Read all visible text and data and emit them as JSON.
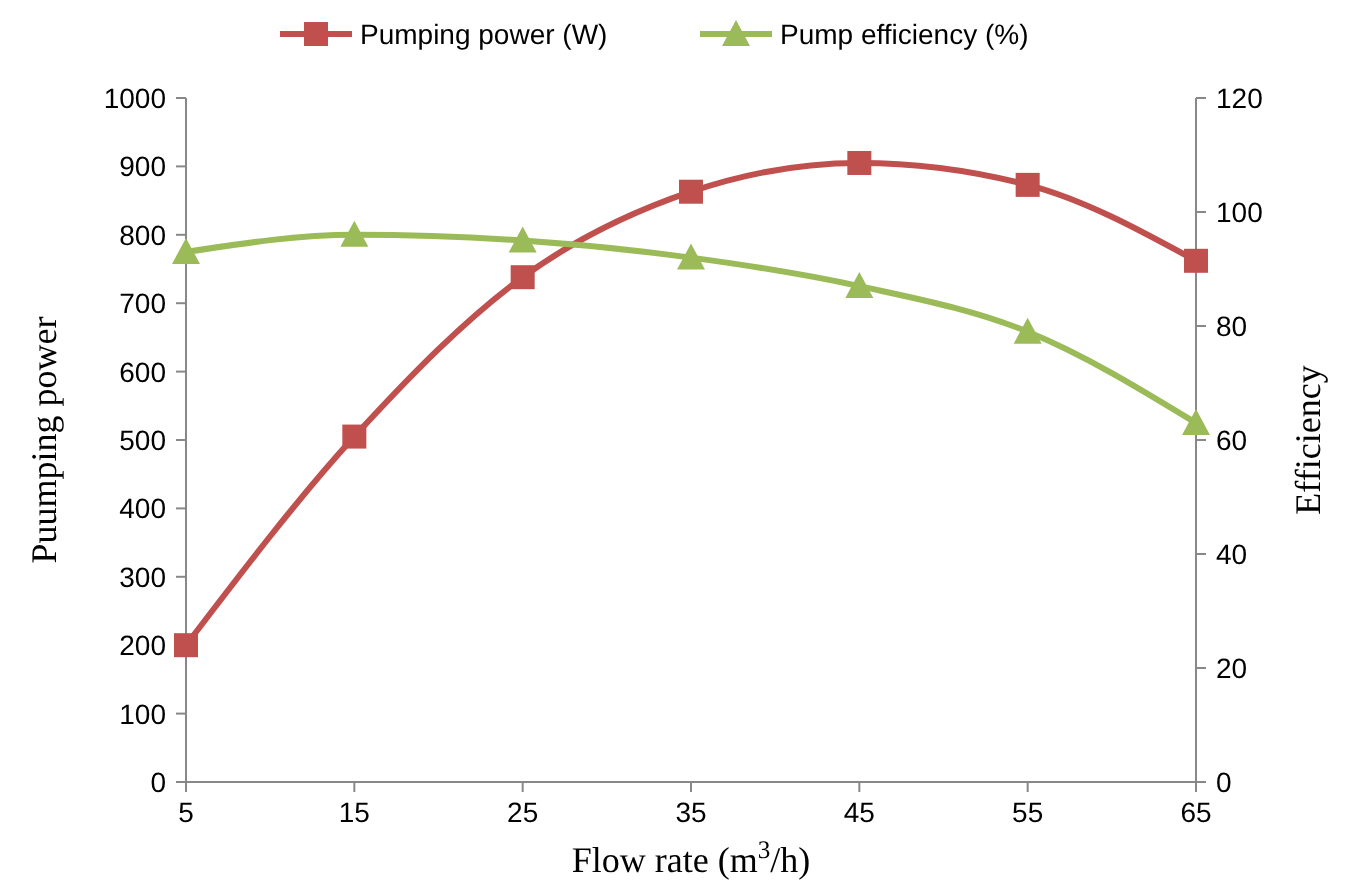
{
  "chart_data": {
    "type": "line",
    "xlabel": "Flow rate (m$^{3}$/h)",
    "ylabel": "Puumping power",
    "y2label": "Efficiency",
    "x": [
      5,
      15,
      25,
      35,
      45,
      55,
      65
    ],
    "xlim": [
      5,
      65
    ],
    "xticks": [
      5,
      15,
      25,
      35,
      45,
      55,
      65
    ],
    "ylim": [
      0,
      1000
    ],
    "yticks": [
      0,
      100,
      200,
      300,
      400,
      500,
      600,
      700,
      800,
      900,
      1000
    ],
    "y2lim": [
      0,
      120
    ],
    "y2ticks": [
      0,
      20,
      40,
      60,
      80,
      100,
      120
    ],
    "series": [
      {
        "name": "Pumping power (W)",
        "color": "#c0504d",
        "marker": "square",
        "values": [
          200,
          505,
          738,
          863,
          905,
          873,
          762
        ]
      },
      {
        "name": "Pump efficiency (%)",
        "color": "#9bbb59",
        "marker": "triangle",
        "axis": "y2",
        "values": [
          93,
          96,
          95,
          92,
          87,
          79,
          63
        ]
      }
    ],
    "legend": "top",
    "grid": false
  }
}
